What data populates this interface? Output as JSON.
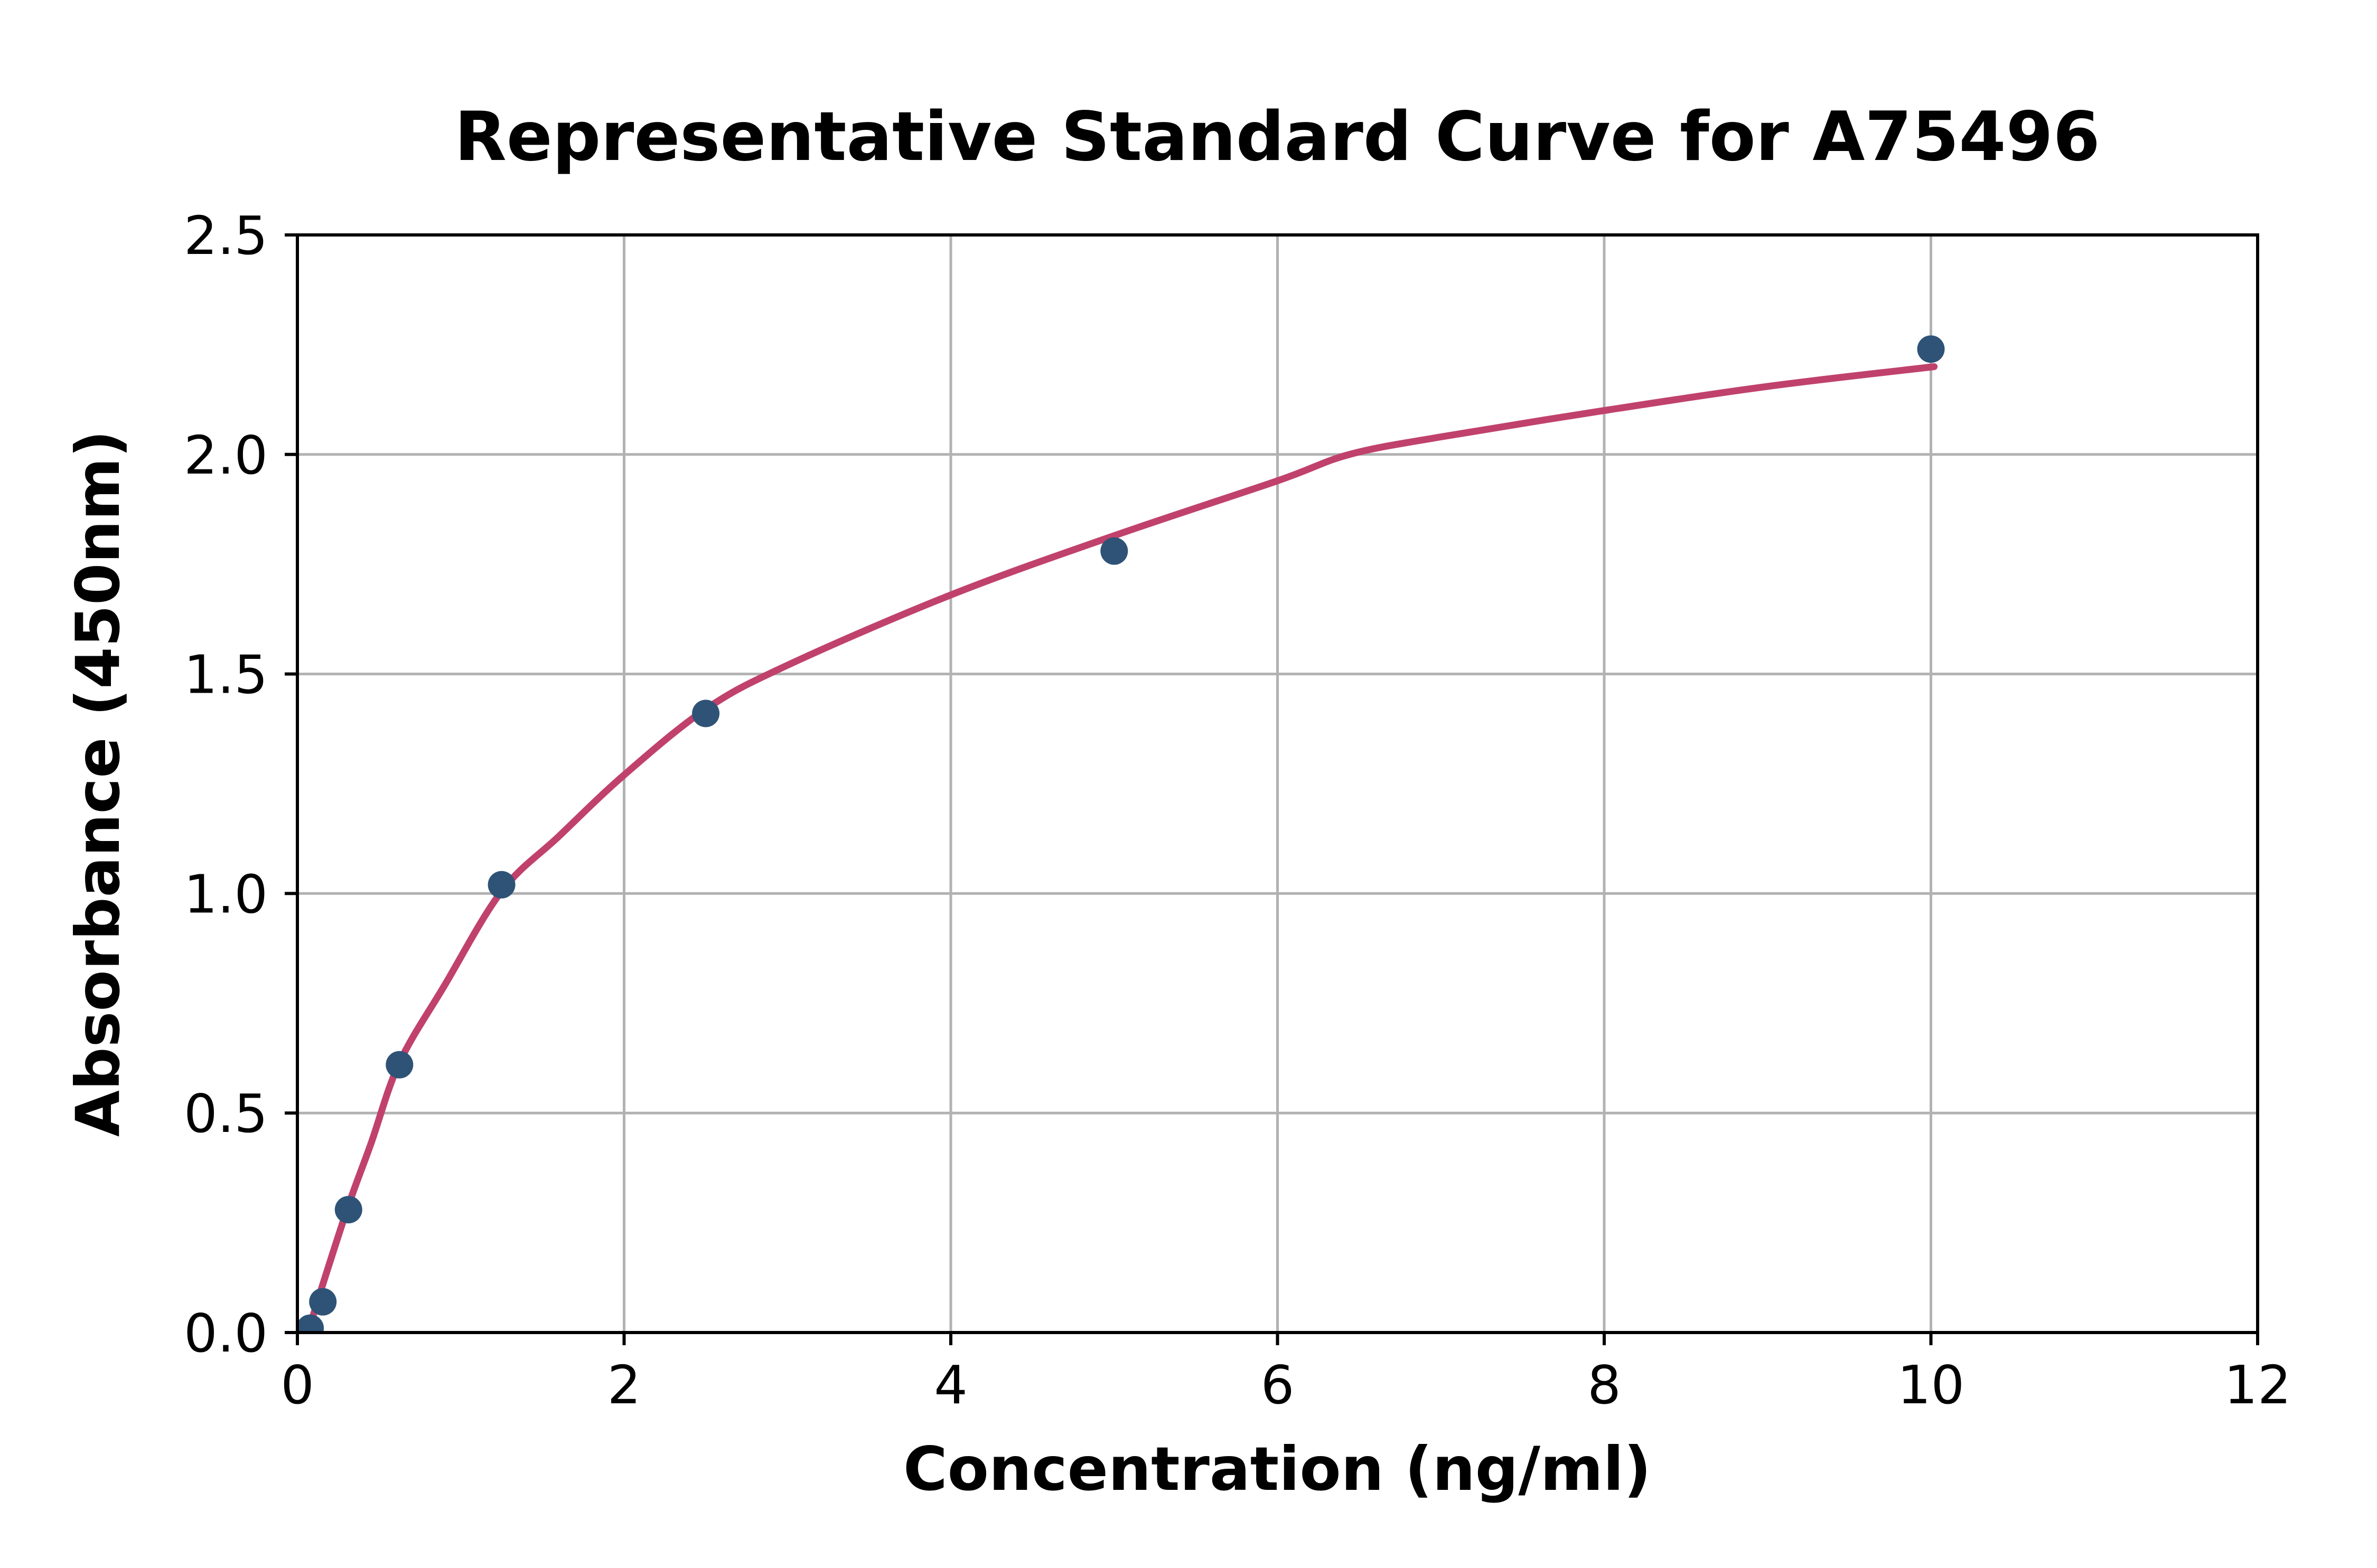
{
  "title": "Representative Standard Curve for A75496",
  "axes": {
    "x": {
      "label": "Concentration (ng/ml)",
      "min": 0,
      "max": 12,
      "tick_values": [
        0,
        2,
        4,
        6,
        8,
        10,
        12
      ],
      "tick_labels": [
        "0",
        "2",
        "4",
        "6",
        "8",
        "10",
        "12"
      ]
    },
    "y": {
      "label": "Absorbance (450nm)",
      "min": 0,
      "max": 2.5,
      "tick_values": [
        0,
        0.5,
        1.0,
        1.5,
        2.0,
        2.5
      ],
      "tick_labels": [
        "0.0",
        "0.5",
        "1.0",
        "1.5",
        "2.0",
        "2.5"
      ]
    }
  },
  "chart_data": {
    "type": "scatter",
    "title": "Representative Standard Curve for A75496",
    "xlabel": "Concentration (ng/ml)",
    "ylabel": "Absorbance (450nm)",
    "xlim": [
      0,
      12
    ],
    "ylim": [
      0,
      2.5
    ],
    "grid": true,
    "legend": false,
    "series": [
      {
        "name": "standard-points",
        "type": "scatter",
        "points": [
          [
            0.078,
            0.01
          ],
          [
            0.156,
            0.07
          ],
          [
            0.313,
            0.28
          ],
          [
            0.625,
            0.61
          ],
          [
            1.25,
            1.02
          ],
          [
            2.5,
            1.41
          ],
          [
            5,
            1.78
          ],
          [
            10,
            2.24
          ]
        ]
      },
      {
        "name": "fitted-curve",
        "type": "line",
        "points": [
          [
            0.065,
            0.0
          ],
          [
            0.156,
            0.11
          ],
          [
            0.313,
            0.29
          ],
          [
            0.45,
            0.43
          ],
          [
            0.625,
            0.615
          ],
          [
            0.9,
            0.79
          ],
          [
            1.25,
            1.005
          ],
          [
            1.6,
            1.13
          ],
          [
            2.0,
            1.27
          ],
          [
            2.5,
            1.42
          ],
          [
            3.0,
            1.52
          ],
          [
            4.0,
            1.68
          ],
          [
            5.0,
            1.815
          ],
          [
            6.0,
            1.94
          ],
          [
            6.44,
            2.0
          ],
          [
            7.0,
            2.04
          ],
          [
            8.0,
            2.1
          ],
          [
            9.0,
            2.155
          ],
          [
            10.02,
            2.2
          ]
        ]
      }
    ],
    "colors": {
      "points": "#2f5377",
      "curve": "#c0426c",
      "grid": "#b2b2b2",
      "axis": "#000000",
      "background": "#ffffff"
    }
  }
}
